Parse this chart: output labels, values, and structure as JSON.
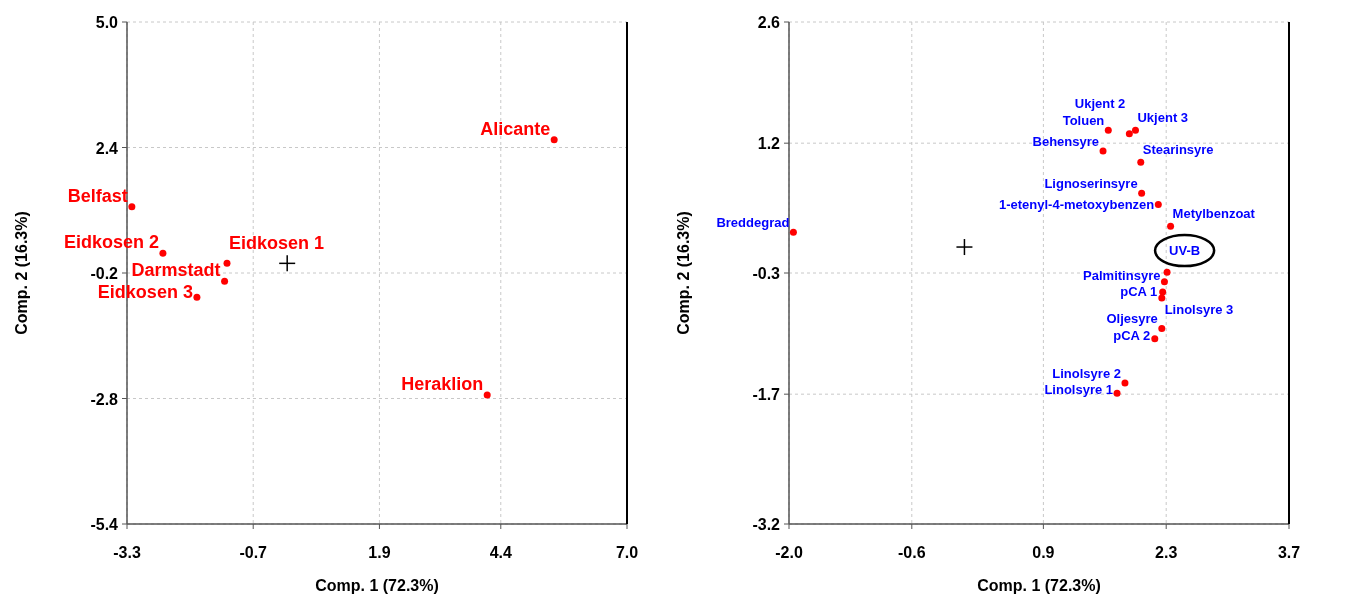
{
  "chart_data": [
    {
      "type": "scatter",
      "xlabel": "Comp. 1 (72.3%)",
      "ylabel": "Comp. 2 (16.3%)",
      "xlim": [
        -3.3,
        7.0
      ],
      "ylim": [
        -5.4,
        5.0
      ],
      "xticks": [
        -3.3,
        -0.7,
        1.9,
        4.4,
        {
          "value": 7,
          "label": "7.0"
        }
      ],
      "yticks": [
        {
          "value": 5,
          "label": "5.0"
        },
        2.4,
        -0.2,
        -2.8,
        -5.4
      ],
      "grid": true,
      "marker": "circle",
      "series": [
        {
          "color": "#ff0000",
          "x": [
            5.5,
            -3.2,
            -2.56,
            -1.24,
            -1.29,
            -1.86,
            4.12
          ],
          "values": [
            2.56,
            1.17,
            0.21,
            0.0,
            -0.37,
            -0.7,
            -2.73
          ]
        }
      ],
      "annotations": [
        {
          "text": "Alicante",
          "x": 5.5,
          "y": 2.56
        },
        {
          "text": "Belfast",
          "x": -3.2,
          "y": 1.17
        },
        {
          "text": "Eidkosen 2",
          "x": -2.56,
          "y": 0.21
        },
        {
          "text": "Eidkosen 1",
          "x": -1.24,
          "y": 0.0
        },
        {
          "text": "Darmstadt",
          "x": -1.29,
          "y": -0.37
        },
        {
          "text": "Eidkosen 3",
          "x": -1.86,
          "y": -0.7
        },
        {
          "text": "Heraklion",
          "x": 4.12,
          "y": -2.73
        }
      ]
    },
    {
      "type": "scatter",
      "xlabel": "Comp. 1 (72.3%)",
      "ylabel": "Comp. 2 (16.3%)",
      "xlim": [
        -2.0,
        3.7
      ],
      "ylim": [
        -3.2,
        2.6
      ],
      "xticks": [
        {
          "value": -2,
          "label": "-2.0"
        },
        -0.6,
        0.9,
        2.3,
        3.7
      ],
      "yticks": [
        2.6,
        1.2,
        -0.3,
        -1.7,
        -3.2
      ],
      "grid": true,
      "marker": "circle",
      "series": [
        {
          "color": "#ff0000",
          "x": [
            1.64,
            1.95,
            1.88,
            1.58,
            2.01,
            2.02,
            2.21,
            2.35,
            -1.95,
            2.31,
            2.28,
            2.26,
            2.25,
            2.25,
            2.17,
            1.83,
            1.74
          ],
          "values": [
            1.35,
            1.35,
            1.31,
            1.11,
            0.98,
            0.62,
            0.49,
            0.24,
            0.17,
            -0.29,
            -0.4,
            -0.52,
            -0.59,
            -0.94,
            -1.06,
            -1.57,
            -1.69
          ]
        }
      ],
      "annotations": [
        {
          "text": "Toluen",
          "x": 1.64,
          "y": 1.35
        },
        {
          "text": "Ukjent 3",
          "x": 1.95,
          "y": 1.35
        },
        {
          "text": "Ukjent 2",
          "x": 1.88,
          "y": 1.31
        },
        {
          "text": "Behensyre",
          "x": 1.58,
          "y": 1.11
        },
        {
          "text": "Stearinsyre",
          "x": 2.01,
          "y": 0.98
        },
        {
          "text": "Lignoserinsyre",
          "x": 2.02,
          "y": 0.62
        },
        {
          "text": "1-etenyl-4-metoxybenzen",
          "x": 2.21,
          "y": 0.49
        },
        {
          "text": "Metylbenzoat",
          "x": 2.35,
          "y": 0.24
        },
        {
          "text": "Breddegrad",
          "x": -1.95,
          "y": 0.17
        },
        {
          "text": "UV-B",
          "x": 2.31,
          "y": -0.29
        },
        {
          "text": "Palmitinsyre",
          "x": 2.28,
          "y": -0.4
        },
        {
          "text": "Linolsyre 3",
          "x": 2.26,
          "y": -0.52
        },
        {
          "text": "pCA 1",
          "x": 2.25,
          "y": -0.59
        },
        {
          "text": "Oljesyre",
          "x": 2.25,
          "y": -0.94
        },
        {
          "text": "pCA 2",
          "x": 2.17,
          "y": -1.06
        },
        {
          "text": "Linolsyre 2",
          "x": 1.83,
          "y": -1.57
        },
        {
          "text": "Linolsyre 1",
          "x": 1.74,
          "y": -1.69
        }
      ]
    }
  ]
}
